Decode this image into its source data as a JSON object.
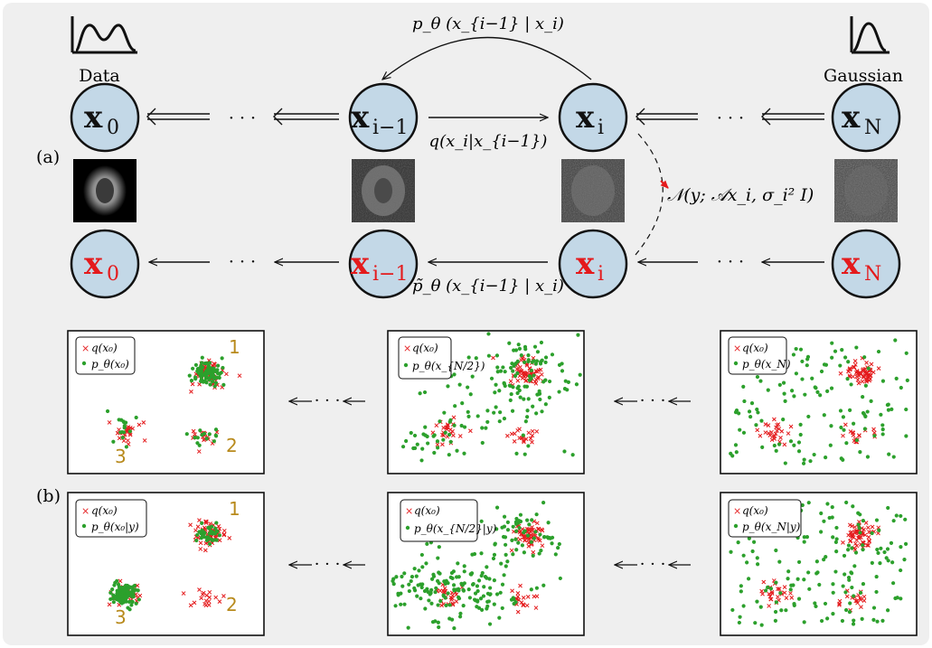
{
  "panel_labels": {
    "a": "(a)",
    "b": "(b)"
  },
  "top_labels": {
    "data": "Data",
    "gaussian": "Gaussian"
  },
  "ellipsis": "· · ·",
  "nodes_top": [
    {
      "main": "x",
      "sub": "0"
    },
    {
      "main": "x",
      "sub": "i−1"
    },
    {
      "main": "x",
      "sub": "i"
    },
    {
      "main": "x",
      "sub": "N"
    }
  ],
  "nodes_bottom": [
    {
      "main": "x",
      "sub": "0"
    },
    {
      "main": "x",
      "sub": "i−1"
    },
    {
      "main": "x",
      "sub": "i"
    },
    {
      "main": "x",
      "sub": "N"
    }
  ],
  "equations": {
    "reverse": "p_θ (x_{i−1} | x_i)",
    "forward": "q(x_i|x_{i−1})",
    "conditional_reverse": "p̃_θ (x_{i−1} | x_i)",
    "likelihood": "𝒩(y; 𝒜x_i, σ_i² I)"
  },
  "legends": {
    "q": "q(x₀)",
    "row1": [
      "p_θ(x₀)",
      "p_θ(x_{N/2})",
      "p_θ(x_N)"
    ],
    "row2": [
      "p_θ(x₀|y)",
      "p_θ(x_{N/2}|y)",
      "p_θ(x_N|y)"
    ]
  },
  "cluster_numbers": [
    "1",
    "2",
    "3"
  ],
  "colors": {
    "background": "#efefef",
    "node_fill": "#c3d8e7",
    "node_stroke": "#111111",
    "red": "#e41a1c",
    "green": "#2ca02c",
    "cluster_number": "#b88a1c"
  }
}
